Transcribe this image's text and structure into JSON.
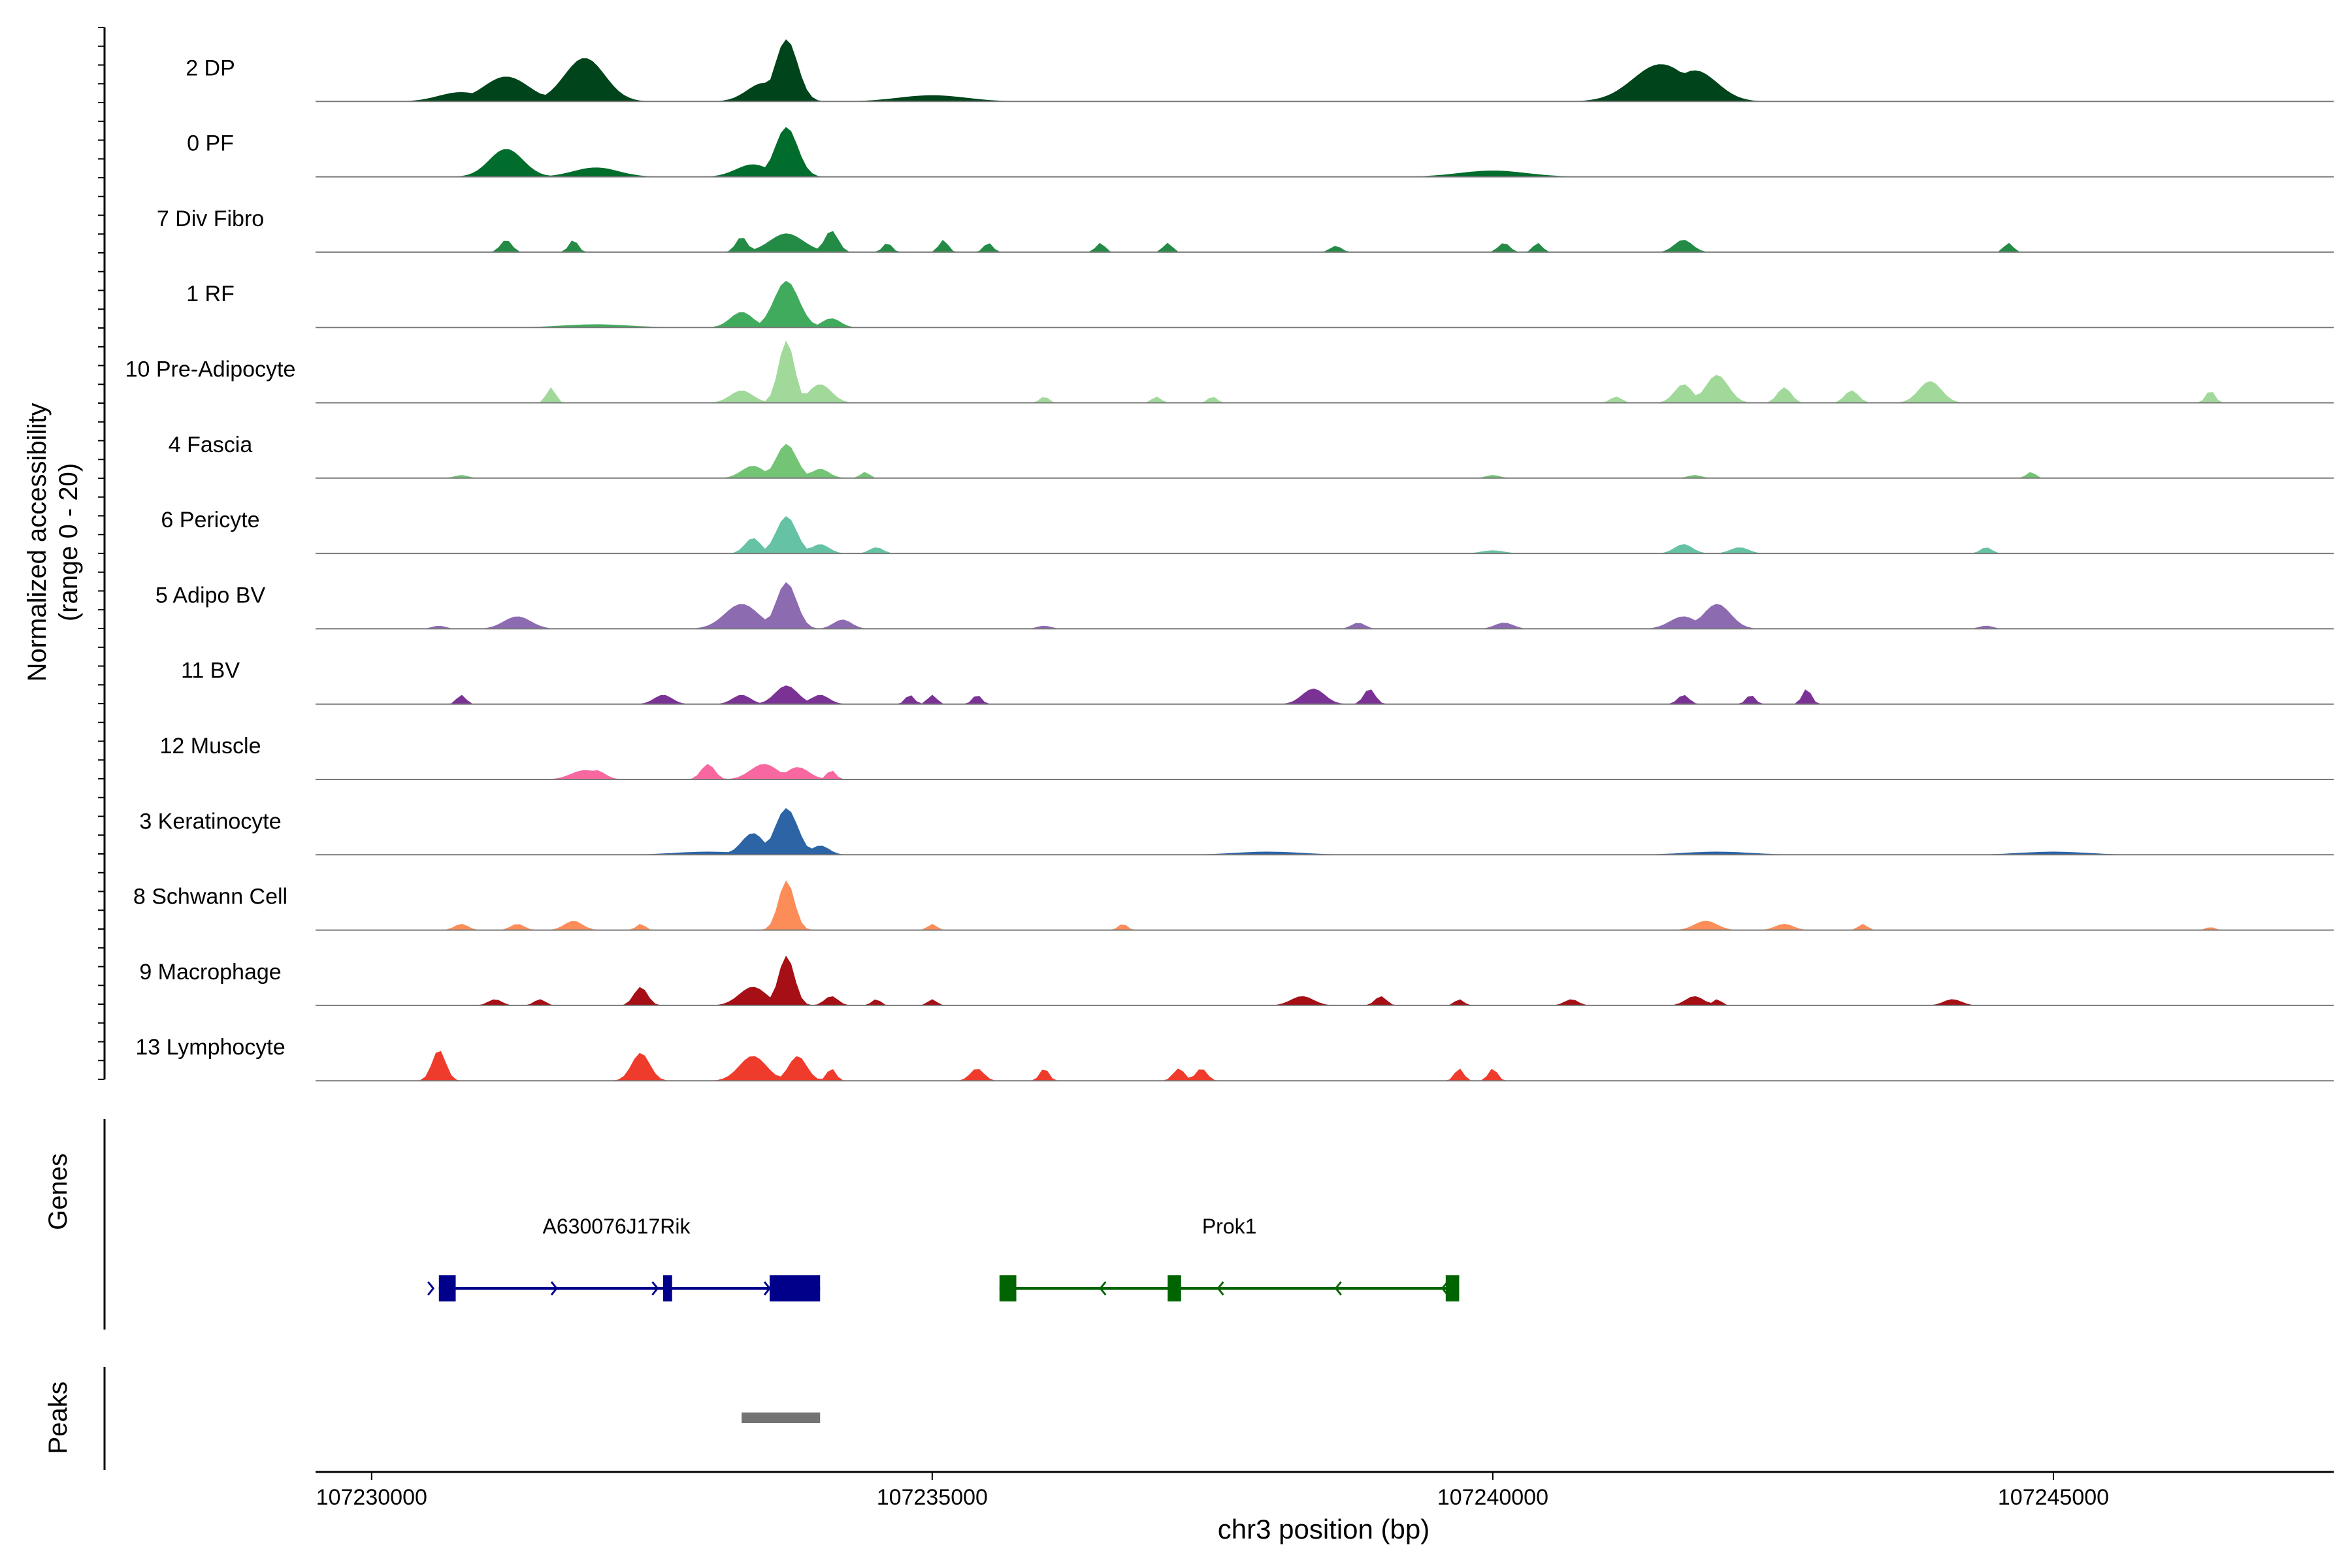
{
  "chart_data": {
    "type": "area",
    "ylabel_line1": "Normalized accessibility",
    "ylabel_line2": "(range 0 - 20)",
    "ylim": [
      0,
      20
    ],
    "xlabel": "chr3 position (bp)",
    "xlim": [
      107229500,
      107247500
    ],
    "xticks": [
      107230000,
      107235000,
      107240000,
      107245000
    ],
    "xtick_labels": [
      "107230000",
      "107235000",
      "107240000",
      "107245000"
    ],
    "series": [
      {
        "name": "2 DP",
        "color": "#00441b",
        "peaks": [
          [
            107231200,
            8,
            200
          ],
          [
            107231900,
            14,
            180
          ],
          [
            107233700,
            20,
            100
          ],
          [
            107233500,
            6,
            150
          ],
          [
            107241500,
            12,
            250
          ],
          [
            107241800,
            10,
            200
          ],
          [
            107230800,
            3,
            200
          ],
          [
            107235000,
            2,
            300
          ]
        ]
      },
      {
        "name": "0 PF",
        "color": "#006d2c",
        "peaks": [
          [
            107231200,
            9,
            150
          ],
          [
            107233700,
            16,
            100
          ],
          [
            107233400,
            4,
            150
          ],
          [
            107232000,
            3,
            200
          ],
          [
            107240000,
            2,
            300
          ]
        ]
      },
      {
        "name": "7 Div Fibro",
        "color": "#238b45",
        "peaks": [
          [
            107231200,
            4,
            50
          ],
          [
            107231800,
            4,
            40
          ],
          [
            107233300,
            5,
            50
          ],
          [
            107233700,
            6,
            150
          ],
          [
            107234100,
            7,
            60
          ],
          [
            107234600,
            3,
            40
          ],
          [
            107235100,
            4,
            40
          ],
          [
            107235500,
            3,
            40
          ],
          [
            107236500,
            3,
            40
          ],
          [
            107237100,
            3,
            40
          ],
          [
            107238600,
            2,
            50
          ],
          [
            107240100,
            3,
            50
          ],
          [
            107240400,
            3,
            40
          ],
          [
            107241700,
            4,
            80
          ],
          [
            107244600,
            3,
            40
          ]
        ]
      },
      {
        "name": "1 RF",
        "color": "#41ab5d",
        "peaks": [
          [
            107233700,
            15,
            110
          ],
          [
            107233300,
            5,
            100
          ],
          [
            107234100,
            3,
            80
          ],
          [
            107232000,
            1,
            300
          ]
        ]
      },
      {
        "name": "10 Pre-Adipocyte",
        "color": "#a1d99b",
        "peaks": [
          [
            107231600,
            5,
            40
          ],
          [
            107233700,
            20,
            70
          ],
          [
            107233300,
            4,
            100
          ],
          [
            107234000,
            6,
            100
          ],
          [
            107241700,
            6,
            80
          ],
          [
            107242000,
            9,
            100
          ],
          [
            107242600,
            5,
            60
          ],
          [
            107243200,
            4,
            60
          ],
          [
            107243900,
            7,
            100
          ],
          [
            107246400,
            4,
            40
          ],
          [
            107236000,
            2,
            40
          ],
          [
            107237000,
            2,
            40
          ],
          [
            107237500,
            2,
            40
          ],
          [
            107241100,
            2,
            50
          ]
        ]
      },
      {
        "name": "4 Fascia",
        "color": "#74c476",
        "peaks": [
          [
            107233700,
            11,
            90
          ],
          [
            107233400,
            4,
            100
          ],
          [
            107234000,
            3,
            80
          ],
          [
            107234400,
            2,
            40
          ],
          [
            107230800,
            1,
            60
          ],
          [
            107240000,
            1,
            60
          ],
          [
            107241800,
            1,
            60
          ],
          [
            107244800,
            2,
            40
          ]
        ]
      },
      {
        "name": "6 Pericyte",
        "color": "#66c2a4",
        "peaks": [
          [
            107233700,
            12,
            90
          ],
          [
            107233400,
            5,
            70
          ],
          [
            107234000,
            3,
            80
          ],
          [
            107234500,
            2,
            60
          ],
          [
            107241700,
            3,
            80
          ],
          [
            107242200,
            2,
            80
          ],
          [
            107244400,
            2,
            50
          ],
          [
            107240000,
            1,
            100
          ]
        ]
      },
      {
        "name": "5 Adipo BV",
        "color": "#8c6bb1",
        "peaks": [
          [
            107231300,
            4,
            120
          ],
          [
            107233700,
            15,
            90
          ],
          [
            107233300,
            8,
            150
          ],
          [
            107234200,
            3,
            80
          ],
          [
            107242000,
            8,
            120
          ],
          [
            107241700,
            4,
            120
          ],
          [
            107230600,
            1,
            60
          ],
          [
            107236000,
            1,
            60
          ],
          [
            107238800,
            2,
            60
          ],
          [
            107240100,
            2,
            80
          ],
          [
            107244400,
            1,
            60
          ]
        ]
      },
      {
        "name": "11 BV",
        "color": "#7a3295",
        "peaks": [
          [
            107230800,
            3,
            40
          ],
          [
            107232600,
            3,
            80
          ],
          [
            107233300,
            3,
            80
          ],
          [
            107233700,
            6,
            100
          ],
          [
            107234000,
            3,
            80
          ],
          [
            107234800,
            3,
            40
          ],
          [
            107235000,
            3,
            40
          ],
          [
            107235400,
            3,
            40
          ],
          [
            107238400,
            5,
            100
          ],
          [
            107238900,
            5,
            50
          ],
          [
            107241700,
            3,
            50
          ],
          [
            107242300,
            3,
            40
          ],
          [
            107242800,
            5,
            40
          ]
        ]
      },
      {
        "name": "12 Muscle",
        "color": "#f768a1",
        "peaks": [
          [
            107231900,
            3,
            120
          ],
          [
            107232000,
            3,
            80
          ],
          [
            107233000,
            5,
            60
          ],
          [
            107233500,
            5,
            120
          ],
          [
            107233800,
            4,
            100
          ],
          [
            107234100,
            3,
            40
          ]
        ]
      },
      {
        "name": "3 Keratinocyte",
        "color": "#2c64a6",
        "peaks": [
          [
            107233700,
            15,
            100
          ],
          [
            107233400,
            7,
            100
          ],
          [
            107234000,
            3,
            80
          ],
          [
            107233000,
            1,
            300
          ],
          [
            107238000,
            1,
            300
          ],
          [
            107242000,
            1,
            300
          ],
          [
            107245000,
            1,
            300
          ]
        ]
      },
      {
        "name": "8 Schwann Cell",
        "color": "#fc8d59",
        "peaks": [
          [
            107233700,
            16,
            70
          ],
          [
            107230800,
            2,
            60
          ],
          [
            107231300,
            2,
            60
          ],
          [
            107231800,
            3,
            80
          ],
          [
            107232400,
            2,
            40
          ],
          [
            107235000,
            2,
            40
          ],
          [
            107236700,
            2,
            40
          ],
          [
            107241900,
            3,
            100
          ],
          [
            107242600,
            2,
            80
          ],
          [
            107243300,
            2,
            40
          ],
          [
            107246400,
            1,
            40
          ]
        ]
      },
      {
        "name": "9 Macrophage",
        "color": "#a50f15",
        "peaks": [
          [
            107233700,
            16,
            70
          ],
          [
            107233400,
            6,
            120
          ],
          [
            107232400,
            6,
            60
          ],
          [
            107231100,
            2,
            60
          ],
          [
            107231500,
            2,
            50
          ],
          [
            107234100,
            3,
            60
          ],
          [
            107234500,
            2,
            40
          ],
          [
            107235000,
            2,
            40
          ],
          [
            107238300,
            3,
            100
          ],
          [
            107239000,
            3,
            50
          ],
          [
            107239700,
            2,
            40
          ],
          [
            107240700,
            2,
            60
          ],
          [
            107241800,
            3,
            80
          ],
          [
            107242000,
            2,
            40
          ],
          [
            107244100,
            2,
            80
          ]
        ]
      },
      {
        "name": "13 Lymphocyte",
        "color": "#ef3b2c",
        "peaks": [
          [
            107230600,
            10,
            60
          ],
          [
            107232400,
            9,
            80
          ],
          [
            107233400,
            8,
            120
          ],
          [
            107233800,
            8,
            80
          ],
          [
            107234100,
            4,
            40
          ],
          [
            107235400,
            4,
            60
          ],
          [
            107236000,
            4,
            40
          ],
          [
            107237200,
            4,
            50
          ],
          [
            107237400,
            4,
            50
          ],
          [
            107239700,
            4,
            40
          ],
          [
            107240000,
            4,
            40
          ]
        ]
      }
    ],
    "genes": {
      "title": "Genes",
      "items": [
        {
          "name": "A630076J17Rik",
          "strand": "+",
          "color": "#00008b",
          "start": 107230600,
          "end": 107234000,
          "exons": [
            [
              107230600,
              107230750
            ],
            [
              107232600,
              107232680
            ],
            [
              107233550,
              107234000
            ]
          ],
          "arrows": [
            107230550,
            107231650,
            107232550,
            107233550
          ]
        },
        {
          "name": "Prok1",
          "strand": "-",
          "color": "#006400",
          "start": 107235600,
          "end": 107239700,
          "exons": [
            [
              107235600,
              107235750
            ],
            [
              107237100,
              107237220
            ],
            [
              107239580,
              107239700
            ]
          ],
          "arrows": [
            107236500,
            107237550,
            107238600,
            107239550
          ]
        }
      ]
    },
    "peaks_track": {
      "title": "Peaks",
      "color": "#737373",
      "regions": [
        [
          107233300,
          107234000
        ]
      ]
    }
  }
}
